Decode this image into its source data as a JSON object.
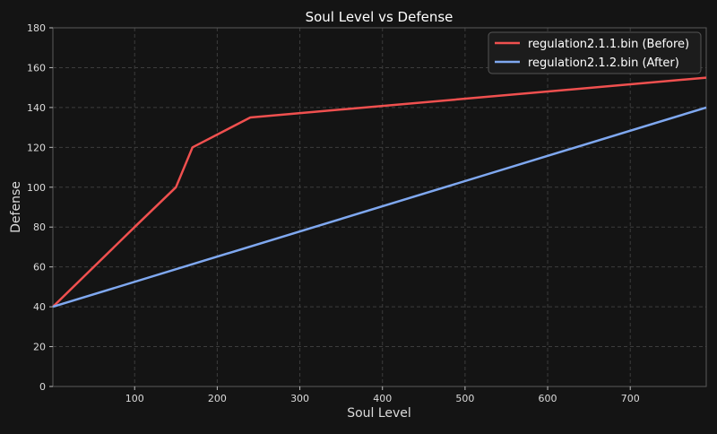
{
  "chart_data": {
    "type": "line",
    "title": "Soul Level vs Defense",
    "xlabel": "Soul Level",
    "ylabel": "Defense",
    "xlim": [
      1,
      792
    ],
    "ylim": [
      0,
      180
    ],
    "xticks": [
      100,
      200,
      300,
      400,
      500,
      600,
      700
    ],
    "yticks": [
      0,
      20,
      40,
      60,
      80,
      100,
      120,
      140,
      160,
      180
    ],
    "grid": true,
    "legend_position": "top-right",
    "series": [
      {
        "name": "regulation2.1.1.bin (Before)",
        "color": "#f0504f",
        "x": [
          1,
          100,
          150,
          170,
          240,
          792
        ],
        "y": [
          40,
          80,
          100,
          120,
          135,
          155
        ]
      },
      {
        "name": "regulation2.1.2.bin (After)",
        "color": "#7fa8f0",
        "x": [
          1,
          792
        ],
        "y": [
          40,
          140
        ]
      }
    ]
  }
}
